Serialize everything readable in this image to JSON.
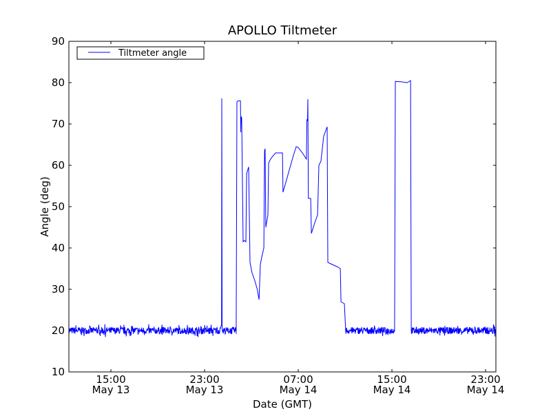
{
  "chart_data": {
    "type": "line",
    "title": "APOLLO Tiltmeter",
    "xlabel": "Date (GMT)",
    "ylabel": "Angle (deg)",
    "x_units": "hours since May 13 00:00 GMT",
    "xlim": [
      11.41,
      47.88
    ],
    "ylim": [
      10,
      90
    ],
    "yticks": [
      10,
      20,
      30,
      40,
      50,
      60,
      70,
      80,
      90
    ],
    "xticks": [
      {
        "value": 15,
        "time": "15:00",
        "date": "May 13"
      },
      {
        "value": 23,
        "time": "23:00",
        "date": "May 13"
      },
      {
        "value": 31,
        "time": "07:00",
        "date": "May 14"
      },
      {
        "value": 39,
        "time": "15:00",
        "date": "May 14"
      },
      {
        "value": 47,
        "time": "23:00",
        "date": "May 14"
      }
    ],
    "grid": false,
    "legend": {
      "placement": "top-left",
      "entries": [
        "Tiltmeter angle"
      ]
    },
    "series": [
      {
        "name": "Tiltmeter angle",
        "color": "#0000ff",
        "baseline_noise": {
          "mean": 20,
          "amplitude": 1.2,
          "segments": [
            [
              11.41,
              24.35
            ],
            [
              24.55,
              25.7
            ],
            [
              35.06,
              39.23
            ],
            [
              40.65,
              47.88
            ]
          ]
        },
        "points": [
          [
            24.35,
            20.5
          ],
          [
            24.45,
            21.5
          ],
          [
            24.47,
            76.2
          ],
          [
            24.5,
            20.3
          ],
          [
            24.55,
            20.2
          ],
          [
            25.7,
            19.2
          ],
          [
            25.76,
            75.3
          ],
          [
            25.85,
            75.6
          ],
          [
            26.06,
            75.6
          ],
          [
            26.09,
            68.0
          ],
          [
            26.12,
            71.8
          ],
          [
            26.17,
            71.5
          ],
          [
            26.29,
            41.5
          ],
          [
            26.4,
            41.8
          ],
          [
            26.53,
            41.5
          ],
          [
            26.59,
            58.0
          ],
          [
            26.7,
            59.0
          ],
          [
            26.76,
            59.6
          ],
          [
            26.88,
            36.5
          ],
          [
            27.05,
            34.0
          ],
          [
            27.3,
            32.0
          ],
          [
            27.5,
            30.0
          ],
          [
            27.65,
            27.5
          ],
          [
            27.76,
            36.0
          ],
          [
            27.9,
            38.0
          ],
          [
            28.06,
            40.0
          ],
          [
            28.12,
            63.5
          ],
          [
            28.17,
            64.0
          ],
          [
            28.23,
            45.0
          ],
          [
            28.41,
            48.0
          ],
          [
            28.47,
            60.5
          ],
          [
            28.6,
            61.3
          ],
          [
            28.76,
            62.0
          ],
          [
            29.06,
            63.0
          ],
          [
            29.65,
            63.0
          ],
          [
            29.7,
            53.5
          ],
          [
            29.95,
            56.0
          ],
          [
            30.3,
            59.5
          ],
          [
            30.6,
            62.5
          ],
          [
            30.82,
            64.5
          ],
          [
            31.0,
            64.3
          ],
          [
            31.35,
            63.0
          ],
          [
            31.7,
            61.5
          ],
          [
            31.74,
            71.0
          ],
          [
            31.79,
            70.8
          ],
          [
            31.82,
            76.0
          ],
          [
            31.86,
            52.0
          ],
          [
            32.06,
            52.0
          ],
          [
            32.12,
            43.5
          ],
          [
            32.4,
            46.0
          ],
          [
            32.65,
            48.0
          ],
          [
            32.76,
            60.0
          ],
          [
            32.94,
            61.0
          ],
          [
            33.17,
            67.0
          ],
          [
            33.47,
            69.3
          ],
          [
            33.53,
            36.5
          ],
          [
            33.9,
            36.0
          ],
          [
            34.3,
            35.5
          ],
          [
            34.59,
            35.0
          ],
          [
            34.65,
            27.0
          ],
          [
            34.94,
            26.5
          ],
          [
            35.06,
            20.0
          ],
          [
            39.23,
            19.8
          ],
          [
            39.29,
            80.3
          ],
          [
            39.8,
            80.2
          ],
          [
            40.3,
            80.0
          ],
          [
            40.59,
            80.5
          ],
          [
            40.65,
            20.0
          ]
        ]
      }
    ]
  }
}
